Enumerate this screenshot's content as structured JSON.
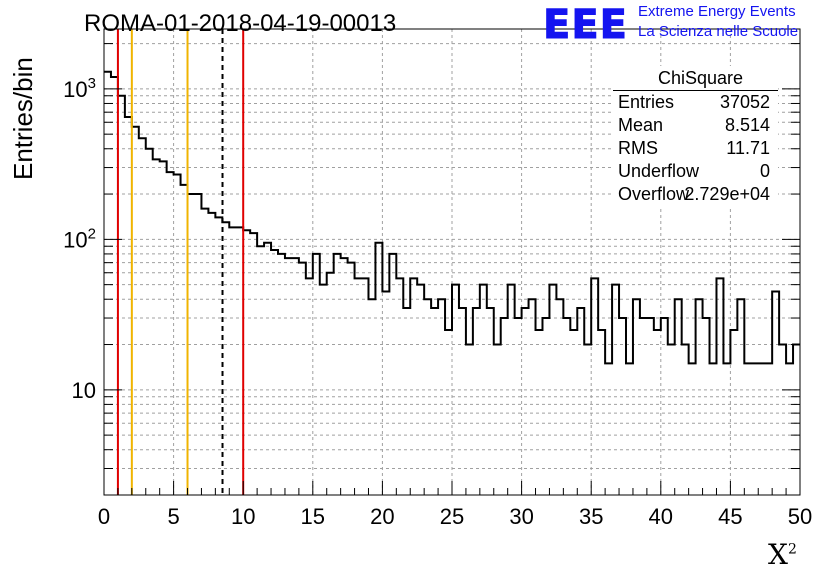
{
  "title": "ROMA-01-2018-04-19-00013",
  "logo": {
    "mark": "EEE",
    "line1": "Extreme Energy Events",
    "line2": "La Scienza nelle Scuole",
    "color": "#1414f0"
  },
  "stats": {
    "title": "ChiSquare",
    "rows": [
      {
        "key": "Entries",
        "value": "37052"
      },
      {
        "key": "Mean",
        "value": "8.514"
      },
      {
        "key": "RMS",
        "value": "11.71"
      },
      {
        "key": "Underflow",
        "value": "0"
      },
      {
        "key": "Overflow",
        "value": "2.729e+04"
      }
    ]
  },
  "chart_data": {
    "type": "histogram",
    "xlabel": "X",
    "xlabel_sup": "2",
    "ylabel": "Entries/bin",
    "xlim": [
      0,
      50
    ],
    "ylim": [
      2,
      2500
    ],
    "y_scale": "log",
    "grid": true,
    "bin_width": 0.5,
    "x_ticks": [
      0,
      5,
      10,
      15,
      20,
      25,
      30,
      35,
      40,
      45,
      50
    ],
    "y_ticks": [
      {
        "value": 10,
        "base": "10",
        "exp": ""
      },
      {
        "value": 100,
        "base": "10",
        "exp": "2"
      },
      {
        "value": 1000,
        "base": "10",
        "exp": "3"
      }
    ],
    "values": [
      1300,
      1200,
      900,
      650,
      560,
      470,
      400,
      340,
      330,
      280,
      270,
      230,
      200,
      200,
      160,
      150,
      140,
      130,
      120,
      120,
      115,
      110,
      90,
      95,
      85,
      80,
      75,
      75,
      70,
      55,
      80,
      50,
      60,
      80,
      75,
      70,
      55,
      55,
      40,
      95,
      45,
      80,
      55,
      35,
      55,
      50,
      40,
      35,
      40,
      25,
      50,
      35,
      20,
      35,
      50,
      35,
      20,
      30,
      50,
      30,
      35,
      40,
      25,
      30,
      50,
      40,
      30,
      25,
      35,
      20,
      55,
      25,
      15,
      50,
      30,
      15,
      40,
      30,
      30,
      25,
      30,
      20,
      40,
      20,
      15,
      40,
      30,
      15,
      55,
      15,
      25,
      40,
      15,
      15,
      15,
      15,
      45,
      20,
      15,
      20
    ],
    "vertical_lines": [
      {
        "x": 1.0,
        "color": "#e00000",
        "style": "solid"
      },
      {
        "x": 2.0,
        "color": "#f0b400",
        "style": "solid"
      },
      {
        "x": 6.0,
        "color": "#f0b400",
        "style": "solid"
      },
      {
        "x": 8.514,
        "color": "#000000",
        "style": "dashed"
      },
      {
        "x": 10.0,
        "color": "#e00000",
        "style": "solid"
      }
    ]
  }
}
